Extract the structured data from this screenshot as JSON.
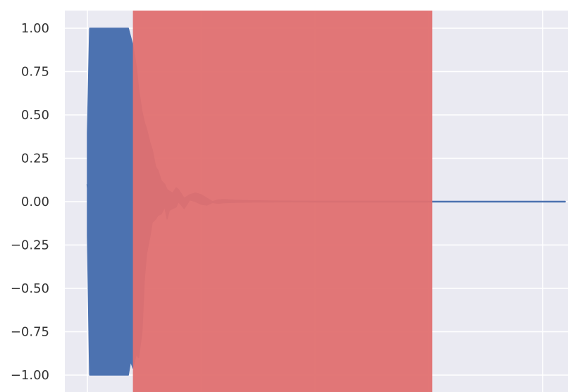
{
  "chart_data": {
    "type": "line",
    "title": "",
    "xlabel": "",
    "ylabel": "",
    "xlim": [
      -0.2,
      4.2
    ],
    "ylim": [
      -1.05,
      1.08
    ],
    "grid": true,
    "legend": "none",
    "x_ticks": [
      0,
      1,
      2,
      3,
      4
    ],
    "x_tick_labels": [],
    "y_ticks": [
      1.0,
      0.75,
      0.5,
      0.25,
      0.0,
      -0.25,
      -0.5,
      -0.75,
      -1.0
    ],
    "y_tick_labels": [
      "1.00",
      "0.75",
      "0.50",
      "0.25",
      "0.00",
      "−0.25",
      "−0.50",
      "−0.75",
      "−1.00"
    ],
    "shaded_region": {
      "x_start": 0.4,
      "x_end": 3.03,
      "color": "#e07070"
    },
    "series": [
      {
        "style": "line",
        "color": "#4c72b0",
        "x": [
          0.0,
          0.02,
          0.36,
          0.38,
          0.4,
          0.43,
          0.45,
          0.48,
          0.5,
          0.52,
          0.55,
          0.57,
          0.6,
          0.62,
          0.65,
          0.68,
          0.7,
          0.72,
          0.75,
          0.78,
          0.8,
          0.85,
          0.9,
          0.95,
          1.0,
          1.05,
          1.1,
          1.15,
          1.2,
          1.3,
          1.4,
          1.6,
          1.8,
          2.0,
          2.5,
          3.0,
          3.5,
          4.0,
          4.2
        ],
        "y_upper": [
          0.4,
          1.0,
          1.0,
          0.95,
          0.9,
          0.78,
          0.65,
          0.52,
          0.46,
          0.42,
          0.34,
          0.3,
          0.2,
          0.18,
          0.12,
          0.1,
          0.07,
          0.06,
          0.05,
          0.08,
          0.07,
          0.02,
          0.04,
          0.05,
          0.04,
          0.02,
          0.0,
          0.01,
          0.012,
          0.008,
          0.006,
          0.004,
          0.002,
          0.0,
          0.0,
          0.0,
          0.0,
          0.0,
          0.0
        ],
        "y_lower": [
          -0.2,
          -1.0,
          -1.0,
          -0.92,
          -0.96,
          -0.88,
          -0.9,
          -0.75,
          -0.45,
          -0.3,
          -0.2,
          -0.12,
          -0.1,
          -0.08,
          -0.07,
          -0.03,
          -0.1,
          -0.05,
          -0.04,
          -0.03,
          0.0,
          -0.04,
          0.01,
          0.0,
          -0.015,
          -0.02,
          -0.005,
          -0.01,
          -0.006,
          -0.004,
          -0.003,
          -0.002,
          -0.001,
          0.0,
          0.0,
          0.0,
          0.0,
          0.0,
          0.0
        ]
      }
    ]
  }
}
